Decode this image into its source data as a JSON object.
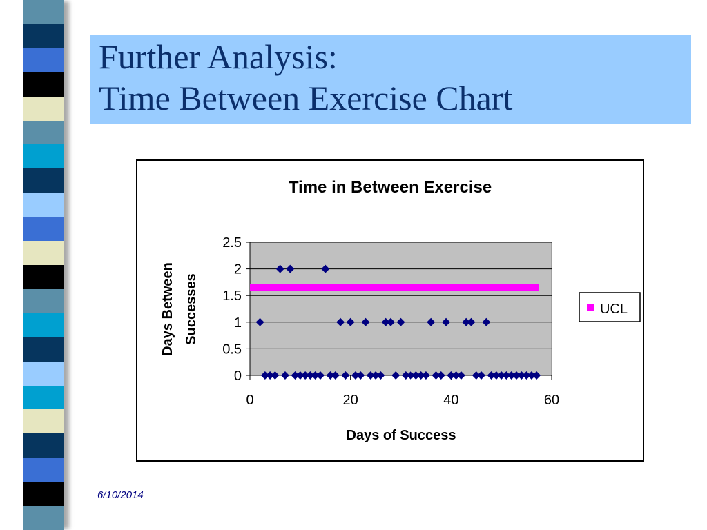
{
  "slide": {
    "title_line1": "Further Analysis:",
    "title_line2": "Time Between Exercise Chart",
    "date": "6/10/2014"
  },
  "colors": {
    "title_bg": "#99ccff",
    "title_text": "#0b2f6b",
    "plot_bg": "#c0c0c0",
    "marker": "#000080",
    "ucl": "#ff00ff",
    "stripes": [
      "#5b8fa8",
      "#06355e",
      "#3a6fd4",
      "#000000",
      "#e6e6c0",
      "#5b8fa8",
      "#00a0d0",
      "#06355e",
      "#99ccff",
      "#3a6fd4",
      "#e6e6c0",
      "#000000",
      "#5b8fa8",
      "#00a0d0",
      "#06355e",
      "#99ccff",
      "#00a0d0",
      "#e6e6c0",
      "#06355e",
      "#3a6fd4",
      "#000000",
      "#5b8fa8"
    ]
  },
  "chart_data": {
    "type": "scatter",
    "title": "Time in Between Exercise",
    "xlabel": "Days of Success",
    "ylabel_lines": [
      "Days Between",
      "Successes"
    ],
    "xlim": [
      0,
      60
    ],
    "ylim": [
      0,
      2.5
    ],
    "x_ticks": [
      "0",
      "20",
      "40",
      "60"
    ],
    "y_ticks": [
      "0",
      "0.5",
      "1",
      "1.5",
      "2",
      "2.5"
    ],
    "grid": "horizontal",
    "legend_position": "right",
    "legend": [
      {
        "label": "UCL"
      }
    ],
    "series": [
      {
        "marker": "diamond",
        "x": [
          2,
          3,
          4,
          5,
          6,
          7,
          8,
          9,
          10,
          11,
          12,
          13,
          14,
          15,
          16,
          17,
          18,
          19,
          20,
          21,
          22,
          23,
          24,
          25,
          26,
          27,
          28,
          29,
          30,
          31,
          32,
          33,
          34,
          35,
          36,
          37,
          38,
          39,
          40,
          41,
          42,
          43,
          44,
          45,
          46,
          47,
          48,
          49,
          50,
          51,
          52,
          53,
          54,
          55,
          56,
          57
        ],
        "y": [
          1,
          0,
          0,
          0,
          2,
          0,
          2,
          0,
          0,
          0,
          0,
          0,
          0,
          2,
          0,
          0,
          1,
          0,
          1,
          0,
          0,
          1,
          0,
          0,
          0,
          1,
          1,
          0,
          1,
          0,
          0,
          0,
          0,
          0,
          1,
          0,
          0,
          1,
          0,
          0,
          0,
          1,
          1,
          0,
          0,
          1,
          0,
          0,
          0,
          0,
          0,
          0,
          0,
          0,
          0,
          0
        ]
      },
      {
        "name": "UCL",
        "x": [
          0,
          57.5
        ],
        "y": [
          1.65,
          1.65
        ]
      }
    ]
  }
}
